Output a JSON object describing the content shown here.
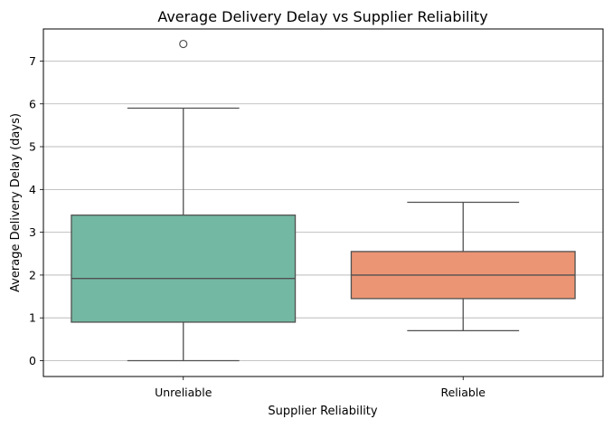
{
  "chart_data": {
    "type": "box",
    "title": "Average Delivery Delay vs Supplier Reliability",
    "xlabel": "Supplier Reliability",
    "ylabel": "Average Delivery Delay (days)",
    "categories": [
      "Unreliable",
      "Reliable"
    ],
    "ylim": [
      -0.37,
      7.75
    ],
    "yticks": [
      0,
      1,
      2,
      3,
      4,
      5,
      6,
      7
    ],
    "grid": "y-axis major gridlines",
    "boxes": [
      {
        "category": "Unreliable",
        "whisker_low": 0.0,
        "q1": 0.9,
        "median": 1.92,
        "q3": 3.4,
        "whisker_high": 5.9,
        "outliers": [
          7.4
        ],
        "color": "#73b8a2"
      },
      {
        "category": "Reliable",
        "whisker_low": 0.7,
        "q1": 1.45,
        "median": 2.0,
        "q3": 2.55,
        "whisker_high": 3.7,
        "outliers": [],
        "color": "#ec9574"
      }
    ]
  }
}
